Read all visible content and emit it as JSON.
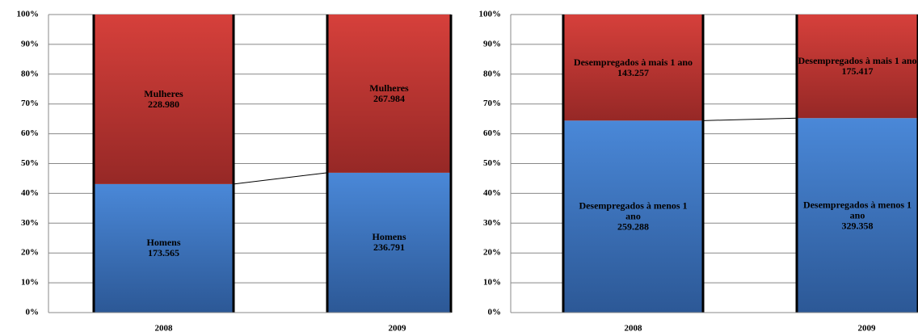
{
  "chart_data": [
    {
      "type": "stacked_percent_bar",
      "categories": [
        "2008",
        "2009"
      ],
      "series": [
        {
          "name": "Homens",
          "color": "#3f7bc9",
          "values": [
            173565,
            236791
          ],
          "value_labels": [
            "173.565",
            "236.791"
          ]
        },
        {
          "name": "Mulheres",
          "color": "#c93a36",
          "values": [
            228980,
            267984
          ],
          "value_labels": [
            "228.980",
            "267.984"
          ]
        }
      ],
      "ylim": [
        0,
        100
      ],
      "yticks": [
        {
          "value": 0,
          "label": "0%"
        },
        {
          "value": 10,
          "label": "10%"
        },
        {
          "value": 20,
          "label": "20%"
        },
        {
          "value": 30,
          "label": "30%"
        },
        {
          "value": 40,
          "label": "40%"
        },
        {
          "value": 50,
          "label": "50%"
        },
        {
          "value": 60,
          "label": "60%"
        },
        {
          "value": 70,
          "label": "70%"
        },
        {
          "value": 80,
          "label": "80%"
        },
        {
          "value": 90,
          "label": "90%"
        },
        {
          "value": 100,
          "label": "100%"
        }
      ],
      "grid": true
    },
    {
      "type": "stacked_percent_bar",
      "categories": [
        "2008",
        "2009"
      ],
      "series": [
        {
          "name": "Desempregados à menos 1 ano",
          "color": "#3f7bc9",
          "values": [
            259288,
            329358
          ],
          "value_labels": [
            "259.288",
            "329.358"
          ]
        },
        {
          "name": "Desempregados à mais 1 ano",
          "color": "#c93a36",
          "values": [
            143257,
            175417
          ],
          "value_labels": [
            "143.257",
            "175.417"
          ]
        }
      ],
      "ylim": [
        0,
        100
      ],
      "yticks": [
        {
          "value": 0,
          "label": "0%"
        },
        {
          "value": 10,
          "label": "10%"
        },
        {
          "value": 20,
          "label": "20%"
        },
        {
          "value": 30,
          "label": "30%"
        },
        {
          "value": 40,
          "label": "40%"
        },
        {
          "value": 50,
          "label": "50%"
        },
        {
          "value": 60,
          "label": "60%"
        },
        {
          "value": 70,
          "label": "70%"
        },
        {
          "value": 80,
          "label": "80%"
        },
        {
          "value": 90,
          "label": "90%"
        },
        {
          "value": 100,
          "label": "100%"
        }
      ],
      "grid": true
    }
  ]
}
